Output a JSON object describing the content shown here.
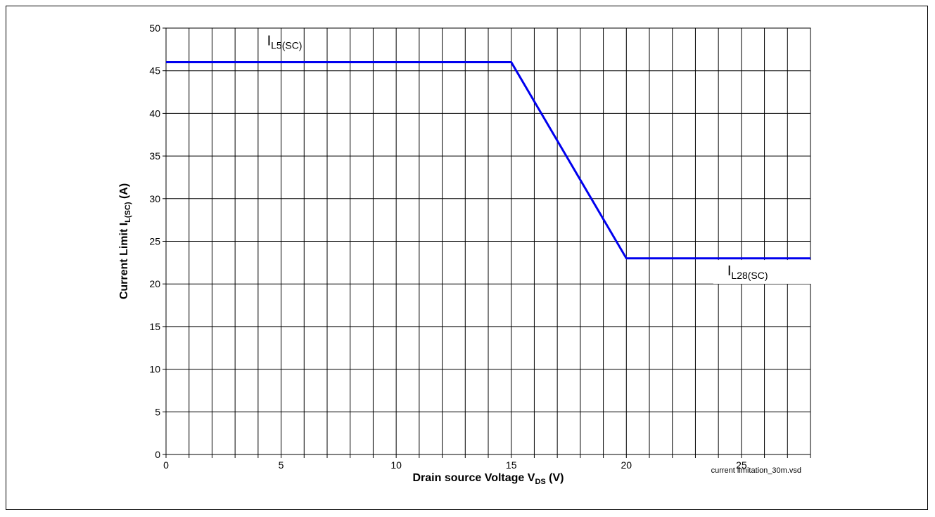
{
  "chart_data": {
    "type": "line",
    "title": "",
    "xlabel": {
      "main": "Drain source Voltage V",
      "sub": "DS",
      "unit": " (V)"
    },
    "ylabel": {
      "main": "Current Limit I",
      "sub": "L(SC)",
      "unit": " (A)"
    },
    "xlim": [
      0,
      28
    ],
    "ylim": [
      0,
      50
    ],
    "x_ticks": [
      0,
      5,
      10,
      15,
      20,
      25
    ],
    "y_ticks": [
      0,
      5,
      10,
      15,
      20,
      25,
      30,
      35,
      40,
      45,
      50
    ],
    "x_grid_step": 1,
    "y_grid_step": 5,
    "grid": true,
    "series": [
      {
        "color": "#0000ee",
        "x": [
          0,
          15,
          20,
          28
        ],
        "y": [
          46,
          46,
          23,
          23
        ]
      }
    ],
    "annotations": [
      {
        "main": "I",
        "sub": "L5(SC)",
        "x": 5,
        "y": 48
      },
      {
        "main": "I",
        "sub": "L28(SC)",
        "x": 25,
        "y": 21
      }
    ],
    "footnote": "current limitation_30m.vsd"
  }
}
